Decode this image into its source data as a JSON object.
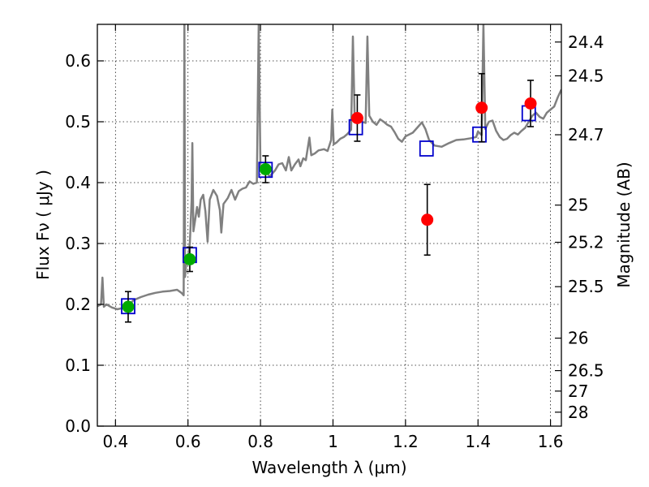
{
  "chart_data": {
    "type": "scatter",
    "xlabel": "Wavelength  λ (μm)",
    "ylabel_left": "Flux  Fν  ( μJy )",
    "ylabel_right": "Magnitude (AB)",
    "xlim": [
      0.35,
      1.63
    ],
    "ylim": [
      0.0,
      0.66
    ],
    "grid": true,
    "x_ticks": [
      0.4,
      0.6,
      0.8,
      1.0,
      1.2,
      1.4,
      1.6
    ],
    "x_tick_labels": [
      "0.4",
      "0.6",
      "0.8",
      "1",
      "1.2",
      "1.4",
      "1.6"
    ],
    "y_ticks": [
      0.0,
      0.1,
      0.2,
      0.3,
      0.4,
      0.5,
      0.6
    ],
    "y_tick_labels": [
      "0.0",
      "0.1",
      "0.2",
      "0.3",
      "0.4",
      "0.5",
      "0.6"
    ],
    "right_ticks": [
      {
        "mag": 24.4,
        "label": "24.4"
      },
      {
        "mag": 24.5,
        "label": "24.5"
      },
      {
        "mag": 24.7,
        "label": "24.7"
      },
      {
        "mag": 25.0,
        "label": "25"
      },
      {
        "mag": 25.2,
        "label": "25.2"
      },
      {
        "mag": 25.5,
        "label": "25.5"
      },
      {
        "mag": 26.0,
        "label": "26"
      },
      {
        "mag": 26.5,
        "label": "26.5"
      },
      {
        "mag": 27.0,
        "label": "27"
      },
      {
        "mag": 28.0,
        "label": "28"
      }
    ],
    "colors": {
      "spectrum": "#808080",
      "model_box": "#0000cc",
      "green_point": "#00aa00",
      "red_point": "#ff0000",
      "errorbar": "#000000"
    },
    "model_boxes": [
      {
        "x": 0.435,
        "y": 0.197
      },
      {
        "x": 0.605,
        "y": 0.281
      },
      {
        "x": 0.814,
        "y": 0.421
      },
      {
        "x": 1.063,
        "y": 0.491
      },
      {
        "x": 1.258,
        "y": 0.456
      },
      {
        "x": 1.404,
        "y": 0.479
      },
      {
        "x": 1.54,
        "y": 0.514
      }
    ],
    "green_points": [
      {
        "x": 0.435,
        "y": 0.196,
        "err": 0.025
      },
      {
        "x": 0.605,
        "y": 0.274,
        "err": 0.02
      },
      {
        "x": 0.814,
        "y": 0.422,
        "err": 0.022
      }
    ],
    "red_points": [
      {
        "x": 1.067,
        "y": 0.506,
        "err": 0.038
      },
      {
        "x": 1.26,
        "y": 0.339,
        "err": 0.058
      },
      {
        "x": 1.41,
        "y": 0.523,
        "err": 0.056
      },
      {
        "x": 1.545,
        "y": 0.53,
        "err": 0.038
      }
    ],
    "spectrum": [
      [
        0.35,
        0.197
      ],
      [
        0.36,
        0.2
      ],
      [
        0.364,
        0.244
      ],
      [
        0.368,
        0.196
      ],
      [
        0.375,
        0.2
      ],
      [
        0.39,
        0.195
      ],
      [
        0.405,
        0.192
      ],
      [
        0.42,
        0.194
      ],
      [
        0.435,
        0.198
      ],
      [
        0.45,
        0.207
      ],
      [
        0.47,
        0.212
      ],
      [
        0.49,
        0.216
      ],
      [
        0.51,
        0.219
      ],
      [
        0.53,
        0.221
      ],
      [
        0.55,
        0.222
      ],
      [
        0.57,
        0.224
      ],
      [
        0.582,
        0.219
      ],
      [
        0.588,
        0.215
      ],
      [
        0.59,
        0.66
      ],
      [
        0.592,
        0.245
      ],
      [
        0.596,
        0.272
      ],
      [
        0.6,
        0.276
      ],
      [
        0.605,
        0.3
      ],
      [
        0.61,
        0.37
      ],
      [
        0.612,
        0.465
      ],
      [
        0.615,
        0.32
      ],
      [
        0.62,
        0.34
      ],
      [
        0.625,
        0.36
      ],
      [
        0.63,
        0.344
      ],
      [
        0.635,
        0.372
      ],
      [
        0.642,
        0.38
      ],
      [
        0.648,
        0.353
      ],
      [
        0.654,
        0.303
      ],
      [
        0.66,
        0.372
      ],
      [
        0.67,
        0.388
      ],
      [
        0.68,
        0.378
      ],
      [
        0.688,
        0.355
      ],
      [
        0.692,
        0.318
      ],
      [
        0.698,
        0.365
      ],
      [
        0.71,
        0.375
      ],
      [
        0.72,
        0.388
      ],
      [
        0.73,
        0.372
      ],
      [
        0.74,
        0.386
      ],
      [
        0.75,
        0.39
      ],
      [
        0.76,
        0.392
      ],
      [
        0.77,
        0.402
      ],
      [
        0.78,
        0.398
      ],
      [
        0.79,
        0.4
      ],
      [
        0.795,
        0.66
      ],
      [
        0.8,
        0.42
      ],
      [
        0.812,
        0.422
      ],
      [
        0.825,
        0.41
      ],
      [
        0.84,
        0.42
      ],
      [
        0.85,
        0.43
      ],
      [
        0.86,
        0.432
      ],
      [
        0.87,
        0.42
      ],
      [
        0.878,
        0.442
      ],
      [
        0.885,
        0.42
      ],
      [
        0.895,
        0.43
      ],
      [
        0.905,
        0.438
      ],
      [
        0.91,
        0.427
      ],
      [
        0.918,
        0.44
      ],
      [
        0.925,
        0.437
      ],
      [
        0.935,
        0.474
      ],
      [
        0.94,
        0.445
      ],
      [
        0.95,
        0.448
      ],
      [
        0.96,
        0.453
      ],
      [
        0.975,
        0.455
      ],
      [
        0.985,
        0.452
      ],
      [
        0.995,
        0.47
      ],
      [
        0.998,
        0.52
      ],
      [
        1.002,
        0.463
      ],
      [
        1.01,
        0.466
      ],
      [
        1.02,
        0.472
      ],
      [
        1.03,
        0.475
      ],
      [
        1.04,
        0.48
      ],
      [
        1.05,
        0.487
      ],
      [
        1.055,
        0.64
      ],
      [
        1.06,
        0.5
      ],
      [
        1.07,
        0.505
      ],
      [
        1.08,
        0.5
      ],
      [
        1.09,
        0.498
      ],
      [
        1.095,
        0.64
      ],
      [
        1.1,
        0.51
      ],
      [
        1.11,
        0.5
      ],
      [
        1.12,
        0.495
      ],
      [
        1.13,
        0.504
      ],
      [
        1.14,
        0.5
      ],
      [
        1.15,
        0.495
      ],
      [
        1.16,
        0.492
      ],
      [
        1.17,
        0.483
      ],
      [
        1.18,
        0.472
      ],
      [
        1.19,
        0.467
      ],
      [
        1.2,
        0.476
      ],
      [
        1.22,
        0.482
      ],
      [
        1.235,
        0.492
      ],
      [
        1.245,
        0.499
      ],
      [
        1.255,
        0.488
      ],
      [
        1.265,
        0.47
      ],
      [
        1.28,
        0.461
      ],
      [
        1.3,
        0.459
      ],
      [
        1.32,
        0.465
      ],
      [
        1.34,
        0.47
      ],
      [
        1.36,
        0.471
      ],
      [
        1.38,
        0.473
      ],
      [
        1.395,
        0.475
      ],
      [
        1.4,
        0.484
      ],
      [
        1.41,
        0.478
      ],
      [
        1.415,
        0.66
      ],
      [
        1.42,
        0.488
      ],
      [
        1.43,
        0.5
      ],
      [
        1.44,
        0.502
      ],
      [
        1.45,
        0.485
      ],
      [
        1.46,
        0.475
      ],
      [
        1.47,
        0.47
      ],
      [
        1.48,
        0.472
      ],
      [
        1.49,
        0.478
      ],
      [
        1.5,
        0.482
      ],
      [
        1.51,
        0.479
      ],
      [
        1.52,
        0.485
      ],
      [
        1.53,
        0.49
      ],
      [
        1.54,
        0.5
      ],
      [
        1.55,
        0.51
      ],
      [
        1.56,
        0.515
      ],
      [
        1.57,
        0.508
      ],
      [
        1.58,
        0.505
      ],
      [
        1.59,
        0.515
      ],
      [
        1.6,
        0.52
      ],
      [
        1.61,
        0.525
      ],
      [
        1.62,
        0.54
      ],
      [
        1.63,
        0.553
      ]
    ]
  }
}
